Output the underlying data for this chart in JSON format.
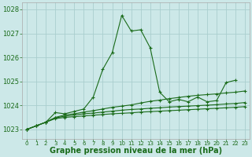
{
  "title": "Graphe pression niveau de la mer (hPa)",
  "bg_color": "#cce8e8",
  "grid_color": "#aacece",
  "line_color": "#1a6b1a",
  "xlim": [
    -0.5,
    23.5
  ],
  "ylim": [
    1022.6,
    1028.3
  ],
  "yticks": [
    1023,
    1024,
    1025,
    1026,
    1027,
    1028
  ],
  "xtick_labels": [
    "0",
    "1",
    "2",
    "3",
    "4",
    "5",
    "6",
    "7",
    "8",
    "9",
    "10",
    "11",
    "12",
    "13",
    "14",
    "15",
    "16",
    "17",
    "18",
    "19",
    "20",
    "21",
    "22",
    "23"
  ],
  "series": [
    {
      "x": [
        0,
        1,
        2,
        3,
        4,
        5,
        6,
        7,
        8,
        9,
        10,
        11,
        12,
        13,
        14,
        15,
        16,
        17,
        18,
        19,
        20,
        21,
        22
      ],
      "y": [
        1023.0,
        1023.15,
        1023.3,
        1023.7,
        1023.65,
        1023.75,
        1023.85,
        1024.35,
        1025.5,
        1026.2,
        1027.75,
        1027.1,
        1027.15,
        1026.4,
        1024.55,
        1024.15,
        1024.25,
        1024.15,
        1024.35,
        1024.15,
        1024.2,
        1024.95,
        1025.05
      ]
    },
    {
      "x": [
        0,
        1,
        2,
        3,
        4,
        5,
        6,
        7,
        8,
        9,
        10,
        11,
        12,
        13,
        14,
        15,
        16,
        17,
        18,
        19,
        20,
        21,
        22,
        23
      ],
      "y": [
        1023.0,
        1023.15,
        1023.3,
        1023.5,
        1023.6,
        1023.65,
        1023.72,
        1023.78,
        1023.85,
        1023.92,
        1023.97,
        1024.02,
        1024.1,
        1024.17,
        1024.22,
        1024.28,
        1024.33,
        1024.38,
        1024.42,
        1024.45,
        1024.48,
        1024.52,
        1024.55,
        1024.6
      ]
    },
    {
      "x": [
        0,
        1,
        2,
        3,
        4,
        5,
        6,
        7,
        8,
        9,
        10,
        11,
        12,
        13,
        14,
        15,
        16,
        17,
        18,
        19,
        20,
        21,
        22,
        23
      ],
      "y": [
        1023.0,
        1023.15,
        1023.3,
        1023.48,
        1023.55,
        1023.6,
        1023.65,
        1023.68,
        1023.72,
        1023.76,
        1023.8,
        1023.83,
        1023.85,
        1023.88,
        1023.9,
        1023.93,
        1023.95,
        1023.97,
        1023.99,
        1024.01,
        1024.03,
        1024.06,
        1024.08,
        1024.12
      ]
    },
    {
      "x": [
        0,
        1,
        2,
        3,
        4,
        5,
        6,
        7,
        8,
        9,
        10,
        11,
        12,
        13,
        14,
        15,
        16,
        17,
        18,
        19,
        20,
        21,
        22,
        23
      ],
      "y": [
        1023.0,
        1023.15,
        1023.3,
        1023.45,
        1023.5,
        1023.53,
        1023.56,
        1023.59,
        1023.62,
        1023.65,
        1023.67,
        1023.69,
        1023.72,
        1023.74,
        1023.76,
        1023.78,
        1023.8,
        1023.82,
        1023.84,
        1023.86,
        1023.88,
        1023.9,
        1023.92,
        1023.95
      ]
    }
  ]
}
